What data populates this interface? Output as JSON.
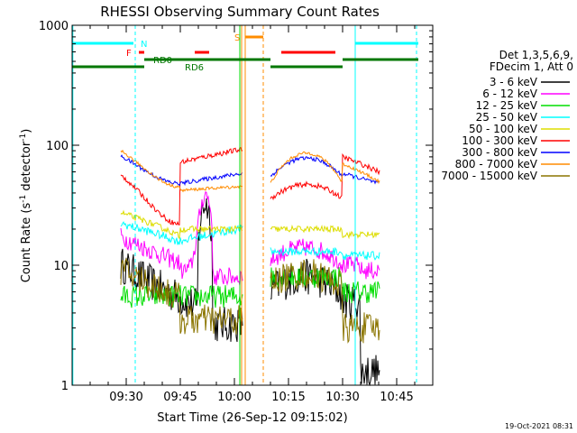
{
  "chart_data": {
    "type": "line",
    "title": "RHESSI Observing Summary Count Rates",
    "xlabel": "Start Time (26-Sep-12 09:15:02)",
    "ylabel_main": "Count Rate (s",
    "ylabel_sup1": "-1",
    "ylabel_mid": " detector",
    "ylabel_sup2": "-1",
    "ylabel_end": ")",
    "yscale": "log",
    "ylim": [
      1,
      1000
    ],
    "xlim_minutes": [
      0,
      100
    ],
    "xticks": [
      {
        "label": "09:30",
        "minute": 15
      },
      {
        "label": "09:45",
        "minute": 30
      },
      {
        "label": "10:00",
        "minute": 45
      },
      {
        "label": "10:15",
        "minute": 60
      },
      {
        "label": "10:30",
        "minute": 75
      },
      {
        "label": "10:45",
        "minute": 90
      }
    ],
    "yticks": [
      {
        "label": "1",
        "value": 1
      },
      {
        "label": "10",
        "value": 10
      },
      {
        "label": "100",
        "value": 100
      },
      {
        "label": "1000",
        "value": 1000
      }
    ],
    "legend_header": [
      "Det 1,3,5,6,9,",
      "FDecim 1, Att 0"
    ],
    "series": [
      {
        "name": "3 - 6 keV",
        "color": "#000000"
      },
      {
        "name": "6 - 12 keV",
        "color": "#ff00ff"
      },
      {
        "name": "12 - 25 keV",
        "color": "#00dd00"
      },
      {
        "name": "25 - 50 keV",
        "color": "#00ffff"
      },
      {
        "name": "50 - 100 keV",
        "color": "#dddd00"
      },
      {
        "name": "100 - 300 keV",
        "color": "#ff0000"
      },
      {
        "name": "300 - 800 keV",
        "color": "#0000ff"
      },
      {
        "name": "800 - 7000 keV",
        "color": "#ff8c00"
      },
      {
        "name": "7000 - 15000 keV",
        "color": "#8b7500"
      }
    ],
    "flag_labels": {
      "N": "N",
      "F": "F",
      "S": "S",
      "RD0": "RD0",
      "RD6": "RD6"
    },
    "timestamp": "19-Oct-2021 08:31"
  }
}
